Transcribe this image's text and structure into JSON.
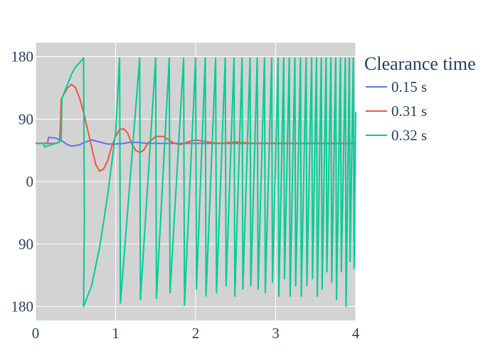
{
  "chart_data": {
    "type": "line",
    "xlim": [
      0,
      4
    ],
    "ylim": [
      -200,
      200
    ],
    "x_ticks": [
      0,
      1,
      2,
      3,
      4
    ],
    "y_ticks": [
      {
        "value": 180,
        "label": "180"
      },
      {
        "value": 90,
        "label": "90"
      },
      {
        "value": 0,
        "label": "0"
      },
      {
        "value": -90,
        "label": "90"
      },
      {
        "value": -180,
        "label": "180"
      }
    ],
    "grid": true,
    "plot_background": "#d3d3d3",
    "legend": {
      "title": "Clearance time",
      "placement": "right"
    },
    "series": [
      {
        "name": "0.15 s",
        "color": "#636efa",
        "x": [
          0,
          0.1,
          0.15,
          0.16,
          0.17,
          0.2,
          0.25,
          0.3,
          0.35,
          0.4,
          0.45,
          0.5,
          0.55,
          0.6,
          0.7,
          0.8,
          0.9,
          1.0,
          1.1,
          1.2,
          1.3,
          1.4,
          1.5,
          1.6,
          1.8,
          2.0,
          2.2,
          2.5,
          3.0,
          3.5,
          4.0
        ],
        "y": [
          55,
          55,
          55,
          63,
          64,
          63,
          63,
          60,
          57,
          53,
          51,
          52,
          53,
          56,
          60,
          57,
          54,
          54,
          55,
          57,
          56,
          55,
          55,
          55,
          55,
          55,
          55,
          55,
          55,
          55,
          55
        ]
      },
      {
        "name": "0.31 s",
        "color": "#ef553b",
        "x": [
          0,
          0.1,
          0.15,
          0.2,
          0.25,
          0.3,
          0.31,
          0.32,
          0.35,
          0.4,
          0.45,
          0.5,
          0.55,
          0.6,
          0.65,
          0.7,
          0.75,
          0.8,
          0.85,
          0.9,
          0.95,
          1.0,
          1.05,
          1.1,
          1.15,
          1.2,
          1.25,
          1.3,
          1.35,
          1.4,
          1.5,
          1.6,
          1.7,
          1.8,
          1.9,
          2.0,
          2.1,
          2.2,
          2.3,
          2.4,
          2.5,
          2.6,
          2.7,
          2.8,
          3.0,
          3.2,
          3.5,
          4.0
        ],
        "y": [
          55,
          55,
          55,
          55,
          55,
          57,
          80,
          118,
          125,
          135,
          140,
          135,
          120,
          100,
          75,
          50,
          25,
          15,
          18,
          30,
          50,
          65,
          75,
          76,
          70,
          55,
          45,
          42,
          45,
          55,
          65,
          65,
          57,
          53,
          57,
          60,
          58,
          56,
          55,
          56,
          57,
          56,
          55,
          55,
          55,
          55,
          55,
          55
        ]
      },
      {
        "name": "0.32 s",
        "color": "#00cc96",
        "x": [
          0,
          0.1,
          0.11,
          0.2,
          0.3,
          0.32,
          0.33,
          0.4,
          0.45,
          0.5,
          0.6,
          0.61,
          0.6,
          0.7,
          0.8,
          0.9,
          1.0,
          1.05,
          1.06,
          1.3,
          1.31,
          1.5,
          1.51,
          1.67,
          1.68,
          1.85,
          1.86,
          2.0,
          2.01,
          2.12,
          2.13,
          2.25,
          2.26,
          2.37,
          2.38,
          2.48,
          2.49,
          2.58,
          2.59,
          2.68,
          2.69,
          2.77,
          2.78,
          2.86,
          2.87,
          2.95,
          2.96,
          3.03,
          3.04,
          3.1,
          3.11,
          3.17,
          3.18,
          3.24,
          3.25,
          3.31,
          3.32,
          3.38,
          3.39,
          3.45,
          3.46,
          3.51,
          3.52,
          3.57,
          3.58,
          3.63,
          3.64,
          3.69,
          3.7,
          3.75,
          3.76,
          3.81,
          3.82,
          3.87,
          3.88,
          3.92,
          3.93,
          3.97,
          3.98,
          4.0
        ],
        "y": [
          55,
          55,
          50,
          53,
          57,
          60,
          120,
          140,
          155,
          165,
          178,
          -50,
          -180,
          -150,
          -95,
          -20,
          70,
          178,
          -175,
          178,
          -170,
          178,
          -168,
          178,
          -160,
          178,
          -178,
          178,
          -155,
          178,
          -165,
          178,
          -160,
          178,
          -150,
          178,
          -165,
          178,
          -155,
          178,
          -150,
          178,
          -155,
          178,
          -160,
          178,
          -145,
          178,
          -165,
          178,
          -140,
          178,
          -165,
          178,
          -150,
          178,
          -165,
          178,
          -150,
          178,
          -140,
          178,
          -165,
          178,
          -155,
          178,
          -130,
          178,
          -145,
          178,
          -170,
          178,
          -130,
          178,
          -180,
          178,
          -115,
          178,
          -125,
          100
        ]
      }
    ]
  }
}
